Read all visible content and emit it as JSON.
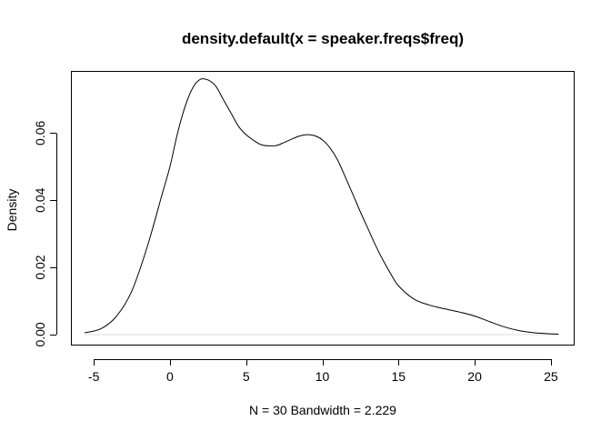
{
  "chart_data": {
    "type": "line",
    "title": "density.default(x = speaker.freqs$freq)",
    "xlabel": "N = 30   Bandwidth = 2.229",
    "ylabel": "Density",
    "xlim": [
      -6.5,
      26.5
    ],
    "ylim": [
      -0.003,
      0.0785
    ],
    "x_ticks": [
      -5,
      0,
      5,
      10,
      15,
      20,
      25
    ],
    "x_tick_labels": [
      "-5",
      "0",
      "5",
      "10",
      "15",
      "20",
      "25"
    ],
    "y_ticks": [
      0.0,
      0.02,
      0.04,
      0.06
    ],
    "y_tick_labels": [
      "0.00",
      "0.02",
      "0.04",
      "0.06"
    ],
    "grid": false,
    "baseline_y": 0,
    "series": [
      {
        "x": [
          -5.6,
          -4.5,
          -3.5,
          -2.5,
          -1.5,
          -0.5,
          0.0,
          0.5,
          1.0,
          1.5,
          2.0,
          2.5,
          3.0,
          3.5,
          4.0,
          4.5,
          5.0,
          5.5,
          6.0,
          6.5,
          7.0,
          7.5,
          8.0,
          8.5,
          9.0,
          9.5,
          10.0,
          10.5,
          11.0,
          11.5,
          12.0,
          12.5,
          13.0,
          13.5,
          14.0,
          14.5,
          15.0,
          16.0,
          17.0,
          18.0,
          19.0,
          20.0,
          21.0,
          22.0,
          23.0,
          24.0,
          25.5
        ],
        "y": [
          0.0005,
          0.0018,
          0.0055,
          0.013,
          0.026,
          0.042,
          0.05,
          0.06,
          0.068,
          0.0735,
          0.076,
          0.0758,
          0.074,
          0.07,
          0.066,
          0.062,
          0.0595,
          0.0578,
          0.0565,
          0.0562,
          0.0563,
          0.0572,
          0.0582,
          0.0591,
          0.0595,
          0.0592,
          0.058,
          0.0556,
          0.052,
          0.047,
          0.0418,
          0.0365,
          0.0315,
          0.0265,
          0.022,
          0.018,
          0.0145,
          0.0106,
          0.0088,
          0.0077,
          0.0067,
          0.0055,
          0.0038,
          0.0022,
          0.0011,
          0.0005,
          0.0001
        ]
      }
    ]
  }
}
